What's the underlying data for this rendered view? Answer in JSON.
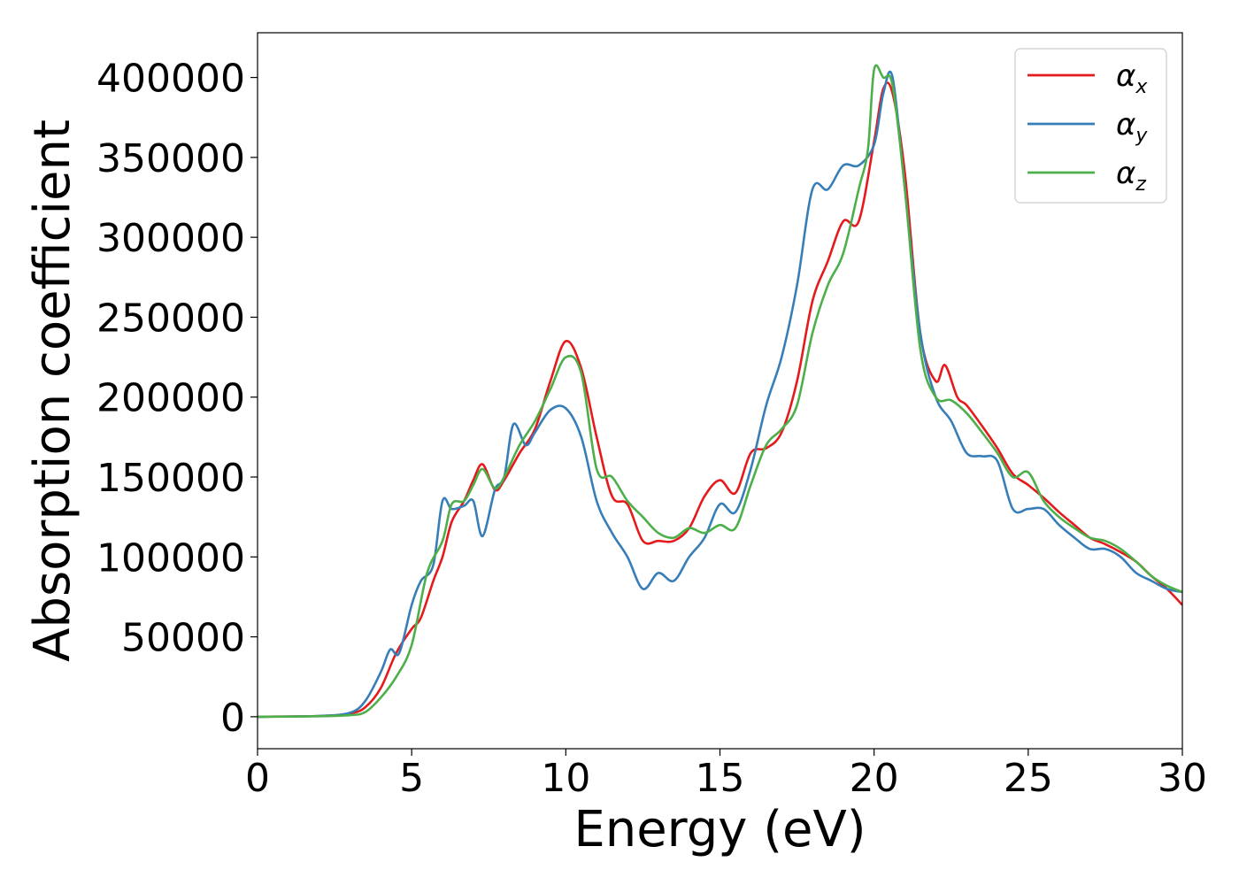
{
  "chart_data": {
    "type": "line",
    "xlabel": "Energy (eV)",
    "ylabel": "Absorption coefficient",
    "xlim": [
      0,
      30
    ],
    "ylim": [
      -20000,
      428000
    ],
    "xticks": [
      0,
      5,
      10,
      15,
      20,
      25,
      30
    ],
    "xtick_labels": [
      "0",
      "5",
      "10",
      "15",
      "20",
      "25",
      "30"
    ],
    "yticks": [
      0,
      50000,
      100000,
      150000,
      200000,
      250000,
      300000,
      350000,
      400000
    ],
    "ytick_labels": [
      "0",
      "50000",
      "100000",
      "150000",
      "200000",
      "250000",
      "300000",
      "350000",
      "400000"
    ],
    "grid": false,
    "legend_position": "top-right",
    "series": [
      {
        "name": "α",
        "subscript": "x",
        "color": "#e41a1c",
        "x": [
          0,
          2,
          3,
          3.5,
          4,
          4.5,
          5,
          5.3,
          5.7,
          6,
          6.3,
          6.7,
          7,
          7.3,
          7.7,
          8,
          8.5,
          9,
          9.5,
          10,
          10.5,
          11,
          11.5,
          12,
          12.5,
          13,
          13.5,
          14,
          14.5,
          15,
          15.5,
          16,
          16.5,
          17,
          17.5,
          18,
          18.5,
          19,
          19.5,
          20,
          20.3,
          20.6,
          21,
          21.5,
          22,
          22.3,
          22.7,
          23,
          23.5,
          24,
          24.5,
          25,
          25.5,
          26,
          26.5,
          27,
          27.5,
          28,
          28.5,
          29,
          29.5,
          30
        ],
        "y": [
          0,
          500,
          2000,
          6000,
          18000,
          40000,
          55000,
          62000,
          85000,
          100000,
          122000,
          135000,
          148000,
          158000,
          142000,
          148000,
          165000,
          180000,
          210000,
          235000,
          218000,
          175000,
          138000,
          133000,
          110000,
          110000,
          110000,
          118000,
          138000,
          148000,
          140000,
          165000,
          168000,
          178000,
          210000,
          260000,
          285000,
          310000,
          310000,
          360000,
          393000,
          390000,
          340000,
          240000,
          210000,
          220000,
          200000,
          195000,
          182000,
          168000,
          152000,
          145000,
          137000,
          128000,
          120000,
          112000,
          108000,
          103000,
          97000,
          88000,
          80000,
          70000
        ]
      },
      {
        "name": "α",
        "subscript": "y",
        "color": "#377eb8",
        "x": [
          0,
          2,
          3,
          3.5,
          4,
          4.3,
          4.6,
          5,
          5.3,
          5.7,
          6,
          6.3,
          6.7,
          7,
          7.3,
          7.7,
          8,
          8.3,
          8.7,
          9,
          9.5,
          10,
          10.5,
          11,
          11.5,
          12,
          12.5,
          13,
          13.5,
          14,
          14.5,
          15,
          15.5,
          16,
          16.5,
          17,
          17.5,
          18,
          18.5,
          19,
          19.5,
          20,
          20.3,
          20.6,
          21,
          21.5,
          22,
          22.5,
          23,
          23.5,
          24,
          24.5,
          25,
          25.5,
          26,
          26.5,
          27,
          27.5,
          28,
          28.5,
          29,
          29.5,
          30
        ],
        "y": [
          0,
          500,
          2500,
          10000,
          28000,
          42000,
          40000,
          70000,
          85000,
          95000,
          135000,
          130000,
          132000,
          135000,
          113000,
          142000,
          150000,
          183000,
          170000,
          178000,
          192000,
          193000,
          175000,
          135000,
          115000,
          100000,
          80000,
          90000,
          85000,
          100000,
          112000,
          133000,
          128000,
          155000,
          195000,
          225000,
          270000,
          330000,
          330000,
          345000,
          345000,
          358000,
          390000,
          400000,
          330000,
          240000,
          200000,
          185000,
          165000,
          163000,
          160000,
          130000,
          130000,
          130000,
          120000,
          112000,
          105000,
          105000,
          100000,
          90000,
          85000,
          80000,
          78000
        ]
      },
      {
        "name": "α",
        "subscript": "z",
        "color": "#4daf4a",
        "x": [
          0,
          2,
          3,
          3.5,
          4,
          4.5,
          5,
          5.5,
          6,
          6.3,
          6.7,
          7,
          7.3,
          7.7,
          8,
          8.5,
          9,
          9.5,
          10,
          10.5,
          11,
          11.5,
          12,
          12.5,
          13,
          13.5,
          14,
          14.5,
          15,
          15.5,
          16,
          16.5,
          17,
          17.5,
          18,
          18.5,
          19,
          19.5,
          19.8,
          20,
          20.3,
          20.6,
          21,
          21.5,
          22,
          22.5,
          23,
          23.5,
          24,
          24.5,
          25,
          25.5,
          26,
          26.5,
          27,
          27.5,
          28,
          28.5,
          29,
          29.5,
          30
        ],
        "y": [
          0,
          300,
          1000,
          3000,
          12000,
          25000,
          45000,
          90000,
          110000,
          133000,
          135000,
          145000,
          155000,
          143000,
          150000,
          170000,
          185000,
          205000,
          225000,
          215000,
          155000,
          150000,
          135000,
          125000,
          115000,
          112000,
          118000,
          115000,
          120000,
          118000,
          145000,
          170000,
          180000,
          195000,
          240000,
          270000,
          290000,
          330000,
          355000,
          405000,
          400000,
          395000,
          330000,
          230000,
          200000,
          198000,
          190000,
          178000,
          165000,
          150000,
          153000,
          135000,
          125000,
          118000,
          112000,
          110000,
          105000,
          97000,
          88000,
          82000,
          78000
        ]
      }
    ]
  }
}
